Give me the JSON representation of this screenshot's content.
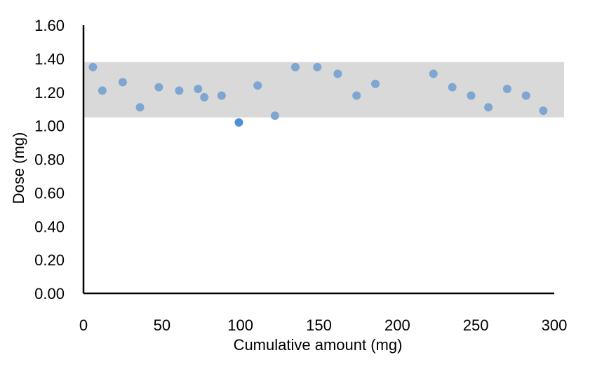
{
  "chart_data": {
    "type": "scatter",
    "title": "",
    "xlabel": "Cumulative amount (mg)",
    "ylabel": "Dose (mg)",
    "xlim": [
      0,
      300
    ],
    "ylim": [
      0,
      1.6
    ],
    "x_ticks": [
      "0",
      "50",
      "100",
      "150",
      "200",
      "250",
      "300"
    ],
    "y_ticks": [
      "0.00",
      "0.20",
      "0.40",
      "0.60",
      "0.80",
      "1.00",
      "1.20",
      "1.40",
      "1.60"
    ],
    "grid": false,
    "legend": "none",
    "band": {
      "y_from": 1.05,
      "y_to": 1.38,
      "color": "#d9d9d9"
    },
    "colors": {
      "points": "#7ea6d1",
      "highlight": "#4f8fd8",
      "axis": "#000000"
    },
    "series": [
      {
        "values": [
          {
            "x": 6,
            "y": 1.35
          },
          {
            "x": 12,
            "y": 1.21
          },
          {
            "x": 25,
            "y": 1.26
          },
          {
            "x": 36,
            "y": 1.11
          },
          {
            "x": 48,
            "y": 1.23
          },
          {
            "x": 61,
            "y": 1.21
          },
          {
            "x": 73,
            "y": 1.22
          },
          {
            "x": 77,
            "y": 1.17
          },
          {
            "x": 88,
            "y": 1.18
          },
          {
            "x": 99,
            "y": 1.02,
            "highlight": true
          },
          {
            "x": 111,
            "y": 1.24
          },
          {
            "x": 122,
            "y": 1.06
          },
          {
            "x": 135,
            "y": 1.35
          },
          {
            "x": 149,
            "y": 1.35
          },
          {
            "x": 162,
            "y": 1.31
          },
          {
            "x": 174,
            "y": 1.18
          },
          {
            "x": 186,
            "y": 1.25
          },
          {
            "x": 223,
            "y": 1.31
          },
          {
            "x": 235,
            "y": 1.23
          },
          {
            "x": 247,
            "y": 1.18
          },
          {
            "x": 258,
            "y": 1.11
          },
          {
            "x": 270,
            "y": 1.22
          },
          {
            "x": 282,
            "y": 1.18
          },
          {
            "x": 293,
            "y": 1.09
          }
        ]
      }
    ]
  }
}
